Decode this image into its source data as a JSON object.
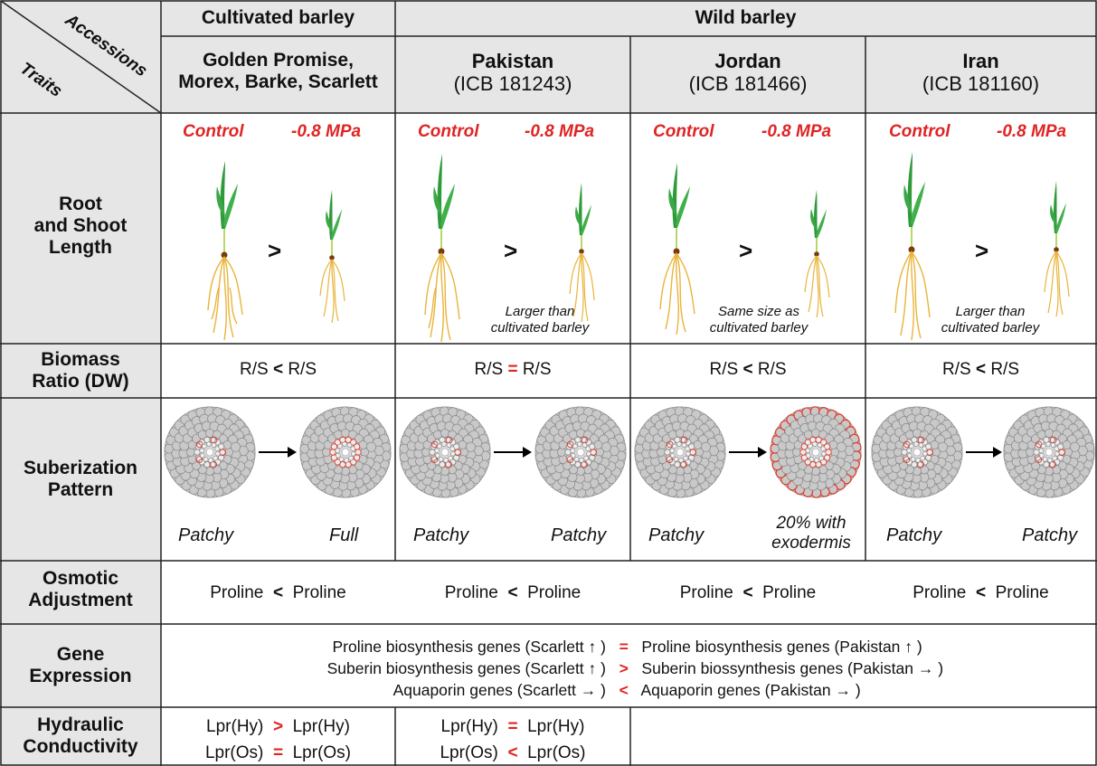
{
  "corner": {
    "top_label": "Accessions",
    "bottom_label": "Traits"
  },
  "groups": {
    "cultivated": "Cultivated barley",
    "wild": "Wild barley"
  },
  "accessions": [
    {
      "line1": "Golden Promise,",
      "line2": "Morex, Barke, Scarlett"
    },
    {
      "line1": "Pakistan",
      "line2": "(ICB 181243)"
    },
    {
      "line1": "Jordan",
      "line2": "(ICB 181466)"
    },
    {
      "line1": "Iran",
      "line2": "(ICB 181160)"
    }
  ],
  "conditions": {
    "control": "Control",
    "stress": "-0.8 MPa"
  },
  "traits": {
    "root_shoot": {
      "line1": "Root",
      "line2": "and Shoot",
      "line3": "Length"
    },
    "biomass": {
      "line1": "Biomass",
      "line2": "Ratio (DW)"
    },
    "suberization": {
      "line1": "Suberization",
      "line2": "Pattern"
    },
    "osmotic": {
      "line1": "Osmotic",
      "line2": "Adjustment"
    },
    "gene": {
      "line1": "Gene",
      "line2": "Expression"
    },
    "hydraulic": {
      "line1": "Hydraulic",
      "line2": "Conductivity"
    }
  },
  "root_compare": [
    ">",
    ">",
    ">",
    ">"
  ],
  "size_notes": [
    "",
    "Larger than cultivated barley",
    "Same size as cultivated barley",
    "Larger than cultivated barley"
  ],
  "biomass_ratio": [
    {
      "left": "R/S",
      "op": "<",
      "right": "R/S"
    },
    {
      "left": "R/S",
      "op": "=",
      "right": "R/S"
    },
    {
      "left": "R/S",
      "op": "<",
      "right": "R/S"
    },
    {
      "left": "R/S",
      "op": "<",
      "right": "R/S"
    }
  ],
  "suberization": [
    {
      "before": "Patchy",
      "after": "Full"
    },
    {
      "before": "Patchy",
      "after": "Patchy"
    },
    {
      "before": "Patchy",
      "after": "20% with exodermis"
    },
    {
      "before": "Patchy",
      "after": "Patchy"
    }
  ],
  "osmotic": [
    {
      "left": "Proline",
      "op": "<",
      "right": "Proline"
    },
    {
      "left": "Proline",
      "op": "<",
      "right": "Proline"
    },
    {
      "left": "Proline",
      "op": "<",
      "right": "Proline"
    },
    {
      "left": "Proline",
      "op": "<",
      "right": "Proline"
    }
  ],
  "gene_expression": [
    {
      "left": "Proline biosynthesis genes (Scarlett",
      "left_arrow": "↑",
      "op": "=",
      "right": "Proline biosynthesis genes (Pakistan",
      "right_arrow": "↑"
    },
    {
      "left": "Suberin biosynthesis genes (Scarlett",
      "left_arrow": "↑",
      "op": ">",
      "right": "Suberin biossynthesis genes (Pakistan",
      "right_arrow": "→"
    },
    {
      "left": "Aquaporin genes (Scarlett",
      "left_arrow": "→",
      "op": "<",
      "right": "Aquaporin genes (Pakistan",
      "right_arrow": "→"
    }
  ],
  "hydraulic": [
    [
      {
        "left": "Lpr(Hy)",
        "op": ">",
        "right": "Lpr(Hy)"
      },
      {
        "left": "Lpr(Os)",
        "op": "=",
        "right": "Lpr(Os)"
      }
    ],
    [
      {
        "left": "Lpr(Hy)",
        "op": "=",
        "right": "Lpr(Hy)"
      },
      {
        "left": "Lpr(Os)",
        "op": "<",
        "right": "Lpr(Os)"
      }
    ]
  ],
  "colors": {
    "accent_red": "#e02424",
    "header_fill": "#e6e6e6",
    "leaf_green": "#2f9a3a",
    "root_yellow": "#e9b43a",
    "cell_gray": "#c9c9c9",
    "suberin_red": "#e03a2a"
  }
}
